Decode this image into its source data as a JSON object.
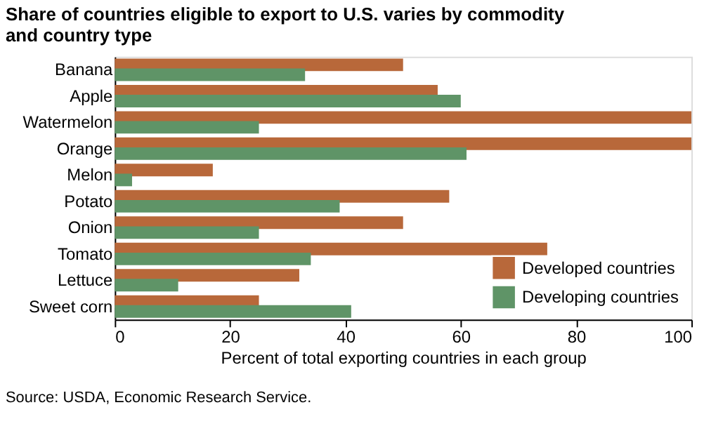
{
  "chart_data": {
    "type": "bar",
    "orientation": "horizontal",
    "title": [
      "Share of countries eligible to export to U.S. varies by commodity",
      "and country type"
    ],
    "xlabel": "Percent of total exporting countries in each group",
    "categories": [
      "Banana",
      "Apple",
      "Watermelon",
      "Orange",
      "Melon",
      "Potato",
      "Onion",
      "Tomato",
      "Lettuce",
      "Sweet corn"
    ],
    "series": [
      {
        "name": "Developed countries",
        "color": "#b8683a",
        "values": [
          50,
          56,
          100,
          100,
          17,
          58,
          50,
          75,
          32,
          25
        ]
      },
      {
        "name": "Developing countries",
        "color": "#5f9467",
        "values": [
          33,
          60,
          25,
          61,
          3,
          39,
          25,
          34,
          11,
          41
        ]
      }
    ],
    "xlim": [
      0,
      100
    ],
    "xticks": [
      0,
      20,
      40,
      60,
      80,
      100
    ],
    "grid": false,
    "legend": "bottom right",
    "annotations": [
      "Source: USDA, Economic Research Service."
    ]
  }
}
